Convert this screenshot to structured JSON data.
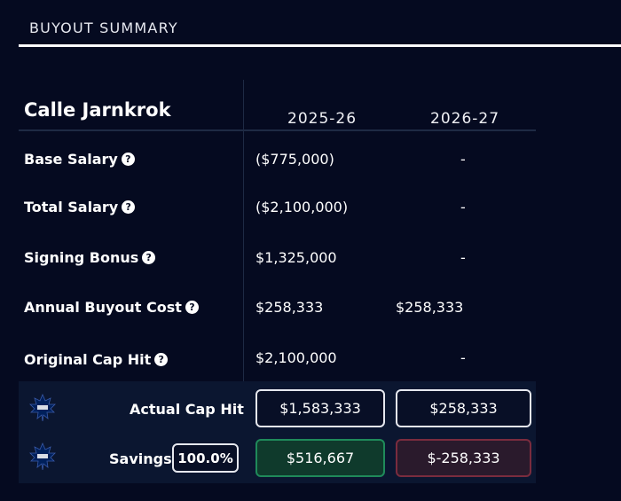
{
  "section": {
    "title": "BUYOUT SUMMARY"
  },
  "player": {
    "name": "Calle Jarnkrok"
  },
  "seasons": [
    "2025-26",
    "2026-27"
  ],
  "rows": [
    {
      "label": "Base Salary",
      "values": [
        "($775,000)",
        "-"
      ]
    },
    {
      "label": "Total Salary",
      "values": [
        "($2,100,000)",
        "-"
      ]
    },
    {
      "label": "Signing Bonus",
      "values": [
        "$1,325,000",
        "-"
      ]
    },
    {
      "label": "Annual Buyout Cost",
      "values": [
        "$258,333",
        "$258,333"
      ]
    },
    {
      "label": "Original Cap Hit",
      "values": [
        "$2,100,000",
        "-"
      ]
    }
  ],
  "help_glyph": "?",
  "actual_cap_hit": {
    "label": "Actual Cap Hit",
    "values": [
      "$1,583,333",
      "$258,333"
    ]
  },
  "savings": {
    "label": "Savings",
    "percent": "100.0%",
    "values": [
      "$516,667",
      "$-258,333"
    ]
  },
  "team": {
    "logo_icon": "maple-leafs-logo-icon",
    "color": "#00205b"
  },
  "colors": {
    "background": "#050a20",
    "panel": "#0b1630",
    "positive": "#1f8a5a",
    "negative": "#7a2c3e"
  }
}
